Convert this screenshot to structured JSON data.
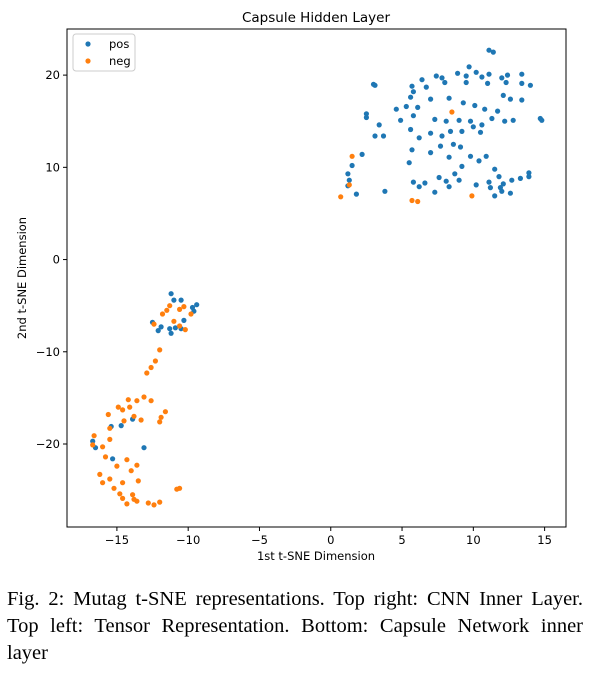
{
  "caption": "Fig. 2: Mutag t-SNE representations. Top right: CNN Inner Layer. Top left: Tensor Representation. Bottom: Capsule Network inner layer",
  "chart_data": {
    "type": "scatter",
    "title": "Capsule Hidden Layer",
    "xlabel": "1st t-SNE Dimension",
    "ylabel": "2nd t-SNE Dimension",
    "xlim": [
      -18.5,
      16.5
    ],
    "ylim": [
      -29,
      25
    ],
    "xticks": [
      -15,
      -10,
      -5,
      0,
      5,
      10,
      15
    ],
    "yticks": [
      -20,
      -10,
      0,
      10,
      20
    ],
    "xtick_labels": [
      "−15",
      "−10",
      "−5",
      "0",
      "5",
      "10",
      "15"
    ],
    "ytick_labels": [
      "−20",
      "−10",
      "0",
      "10",
      "20"
    ],
    "grid": false,
    "legend": "top-left",
    "series": [
      {
        "name": "pos",
        "color": "#1f77b4",
        "points": [
          [
            11.1,
            22.7
          ],
          [
            11.4,
            22.5
          ],
          [
            9.7,
            20.9
          ],
          [
            8.9,
            20.2
          ],
          [
            9.5,
            19.9
          ],
          [
            10.2,
            20.3
          ],
          [
            10.6,
            19.8
          ],
          [
            11.1,
            20.1
          ],
          [
            12.4,
            20.0
          ],
          [
            13.4,
            20.1
          ],
          [
            7.8,
            19.7
          ],
          [
            6.4,
            19.5
          ],
          [
            6.7,
            18.7
          ],
          [
            5.7,
            18.8
          ],
          [
            5.8,
            18.2
          ],
          [
            5.6,
            17.6
          ],
          [
            7.4,
            19.9
          ],
          [
            8.0,
            19.2
          ],
          [
            9.5,
            19.2
          ],
          [
            11.0,
            19.1
          ],
          [
            12.0,
            19.7
          ],
          [
            12.3,
            19.2
          ],
          [
            13.4,
            19.1
          ],
          [
            14.0,
            18.9
          ],
          [
            12.1,
            17.8
          ],
          [
            12.6,
            17.4
          ],
          [
            13.4,
            17.3
          ],
          [
            11.7,
            16.1
          ],
          [
            10.8,
            16.3
          ],
          [
            10.1,
            16.7
          ],
          [
            9.3,
            17.0
          ],
          [
            8.3,
            17.5
          ],
          [
            7.0,
            17.4
          ],
          [
            6.1,
            16.5
          ],
          [
            5.3,
            16.6
          ],
          [
            4.6,
            16.3
          ],
          [
            4.9,
            15.1
          ],
          [
            5.8,
            15.6
          ],
          [
            7.3,
            15.2
          ],
          [
            8.1,
            15.0
          ],
          [
            9.0,
            15.1
          ],
          [
            9.8,
            15.0
          ],
          [
            10.6,
            14.6
          ],
          [
            11.3,
            15.3
          ],
          [
            12.2,
            15.0
          ],
          [
            12.8,
            15.1
          ],
          [
            14.7,
            15.3
          ],
          [
            14.8,
            15.1
          ],
          [
            3.0,
            19.0
          ],
          [
            3.1,
            18.9
          ],
          [
            2.5,
            15.8
          ],
          [
            2.5,
            15.4
          ],
          [
            3.4,
            14.6
          ],
          [
            3.7,
            13.4
          ],
          [
            3.1,
            13.4
          ],
          [
            5.6,
            14.1
          ],
          [
            6.2,
            13.2
          ],
          [
            7.0,
            13.7
          ],
          [
            7.8,
            13.4
          ],
          [
            8.4,
            13.9
          ],
          [
            9.2,
            13.9
          ],
          [
            10.0,
            14.4
          ],
          [
            10.5,
            13.8
          ],
          [
            8.6,
            12.5
          ],
          [
            9.1,
            12.2
          ],
          [
            7.7,
            12.3
          ],
          [
            5.7,
            11.9
          ],
          [
            7.0,
            11.6
          ],
          [
            5.5,
            10.5
          ],
          [
            8.3,
            11.1
          ],
          [
            9.8,
            11.2
          ],
          [
            10.4,
            10.7
          ],
          [
            10.9,
            11.2
          ],
          [
            11.5,
            9.8
          ],
          [
            11.1,
            8.4
          ],
          [
            11.8,
            9.0
          ],
          [
            12.1,
            8.2
          ],
          [
            12.7,
            8.6
          ],
          [
            13.3,
            8.8
          ],
          [
            13.9,
            9.0
          ],
          [
            13.9,
            9.4
          ],
          [
            9.2,
            10.1
          ],
          [
            8.7,
            9.3
          ],
          [
            8.1,
            8.5
          ],
          [
            7.6,
            8.9
          ],
          [
            6.6,
            8.3
          ],
          [
            5.8,
            8.4
          ],
          [
            6.2,
            7.9
          ],
          [
            7.3,
            7.3
          ],
          [
            9.0,
            8.6
          ],
          [
            10.2,
            8.1
          ],
          [
            11.2,
            7.8
          ],
          [
            11.5,
            6.9
          ],
          [
            12.0,
            7.4
          ],
          [
            11.9,
            7.8
          ],
          [
            12.6,
            7.2
          ],
          [
            8.3,
            7.9
          ],
          [
            3.8,
            7.4
          ],
          [
            2.2,
            11.4
          ],
          [
            1.5,
            10.2
          ],
          [
            1.2,
            9.3
          ],
          [
            1.3,
            8.6
          ],
          [
            1.2,
            8.0
          ],
          [
            1.8,
            7.1
          ],
          [
            -11.2,
            -3.7
          ],
          [
            -11.0,
            -4.4
          ],
          [
            -10.5,
            -4.4
          ],
          [
            -9.4,
            -4.9
          ],
          [
            -9.7,
            -5.2
          ],
          [
            -9.6,
            -5.6
          ],
          [
            -10.3,
            -6.6
          ],
          [
            -10.5,
            -7.5
          ],
          [
            -10.9,
            -7.4
          ],
          [
            -11.3,
            -7.5
          ],
          [
            -11.2,
            -8.0
          ],
          [
            -11.9,
            -7.3
          ],
          [
            -12.1,
            -7.7
          ],
          [
            -12.5,
            -6.8
          ],
          [
            -13.9,
            -17.3
          ],
          [
            -14.7,
            -18.0
          ],
          [
            -16.7,
            -19.7
          ],
          [
            -16.5,
            -20.4
          ],
          [
            -15.3,
            -21.6
          ],
          [
            -13.1,
            -20.4
          ],
          [
            -15.4,
            -18.1
          ]
        ]
      },
      {
        "name": "neg",
        "color": "#ff7f0e",
        "points": [
          [
            8.5,
            16.0
          ],
          [
            1.5,
            11.2
          ],
          [
            0.7,
            6.8
          ],
          [
            1.3,
            8.1
          ],
          [
            5.7,
            6.4
          ],
          [
            6.1,
            6.3
          ],
          [
            9.9,
            6.9
          ],
          [
            -9.8,
            -5.9
          ],
          [
            -10.3,
            -5.1
          ],
          [
            -10.6,
            -5.4
          ],
          [
            -11.3,
            -5.0
          ],
          [
            -11.5,
            -5.5
          ],
          [
            -11.8,
            -5.9
          ],
          [
            -11.0,
            -6.7
          ],
          [
            -10.6,
            -7.2
          ],
          [
            -10.2,
            -7.6
          ],
          [
            -12.4,
            -7.0
          ],
          [
            -12.0,
            -9.8
          ],
          [
            -12.3,
            -11.0
          ],
          [
            -12.6,
            -11.7
          ],
          [
            -12.9,
            -12.3
          ],
          [
            -13.1,
            -14.9
          ],
          [
            -13.6,
            -15.3
          ],
          [
            -14.2,
            -15.2
          ],
          [
            -14.1,
            -16.0
          ],
          [
            -14.6,
            -16.3
          ],
          [
            -14.9,
            -16.0
          ],
          [
            -15.6,
            -16.8
          ],
          [
            -13.8,
            -17.0
          ],
          [
            -13.3,
            -17.4
          ],
          [
            -12.6,
            -15.3
          ],
          [
            -11.6,
            -16.5
          ],
          [
            -11.9,
            -17.1
          ],
          [
            -12.0,
            -17.6
          ],
          [
            -14.5,
            -17.5
          ],
          [
            -15.5,
            -18.3
          ],
          [
            -16.6,
            -19.1
          ],
          [
            -16.7,
            -20.1
          ],
          [
            -16.0,
            -20.3
          ],
          [
            -15.5,
            -19.5
          ],
          [
            -16.2,
            -23.3
          ],
          [
            -15.5,
            -23.8
          ],
          [
            -15.0,
            -22.4
          ],
          [
            -15.8,
            -21.4
          ],
          [
            -14.3,
            -21.7
          ],
          [
            -13.6,
            -22.3
          ],
          [
            -14.0,
            -22.9
          ],
          [
            -13.5,
            -24.0
          ],
          [
            -14.6,
            -24.2
          ],
          [
            -15.2,
            -24.8
          ],
          [
            -14.8,
            -25.4
          ],
          [
            -14.6,
            -25.9
          ],
          [
            -14.3,
            -26.5
          ],
          [
            -13.6,
            -26.2
          ],
          [
            -13.9,
            -25.5
          ],
          [
            -12.8,
            -26.4
          ],
          [
            -12.4,
            -26.6
          ],
          [
            -12.0,
            -26.3
          ],
          [
            -10.6,
            -24.8
          ],
          [
            -10.8,
            -24.9
          ],
          [
            -16.0,
            -24.2
          ],
          [
            -13.8,
            -26.0
          ]
        ]
      }
    ]
  }
}
